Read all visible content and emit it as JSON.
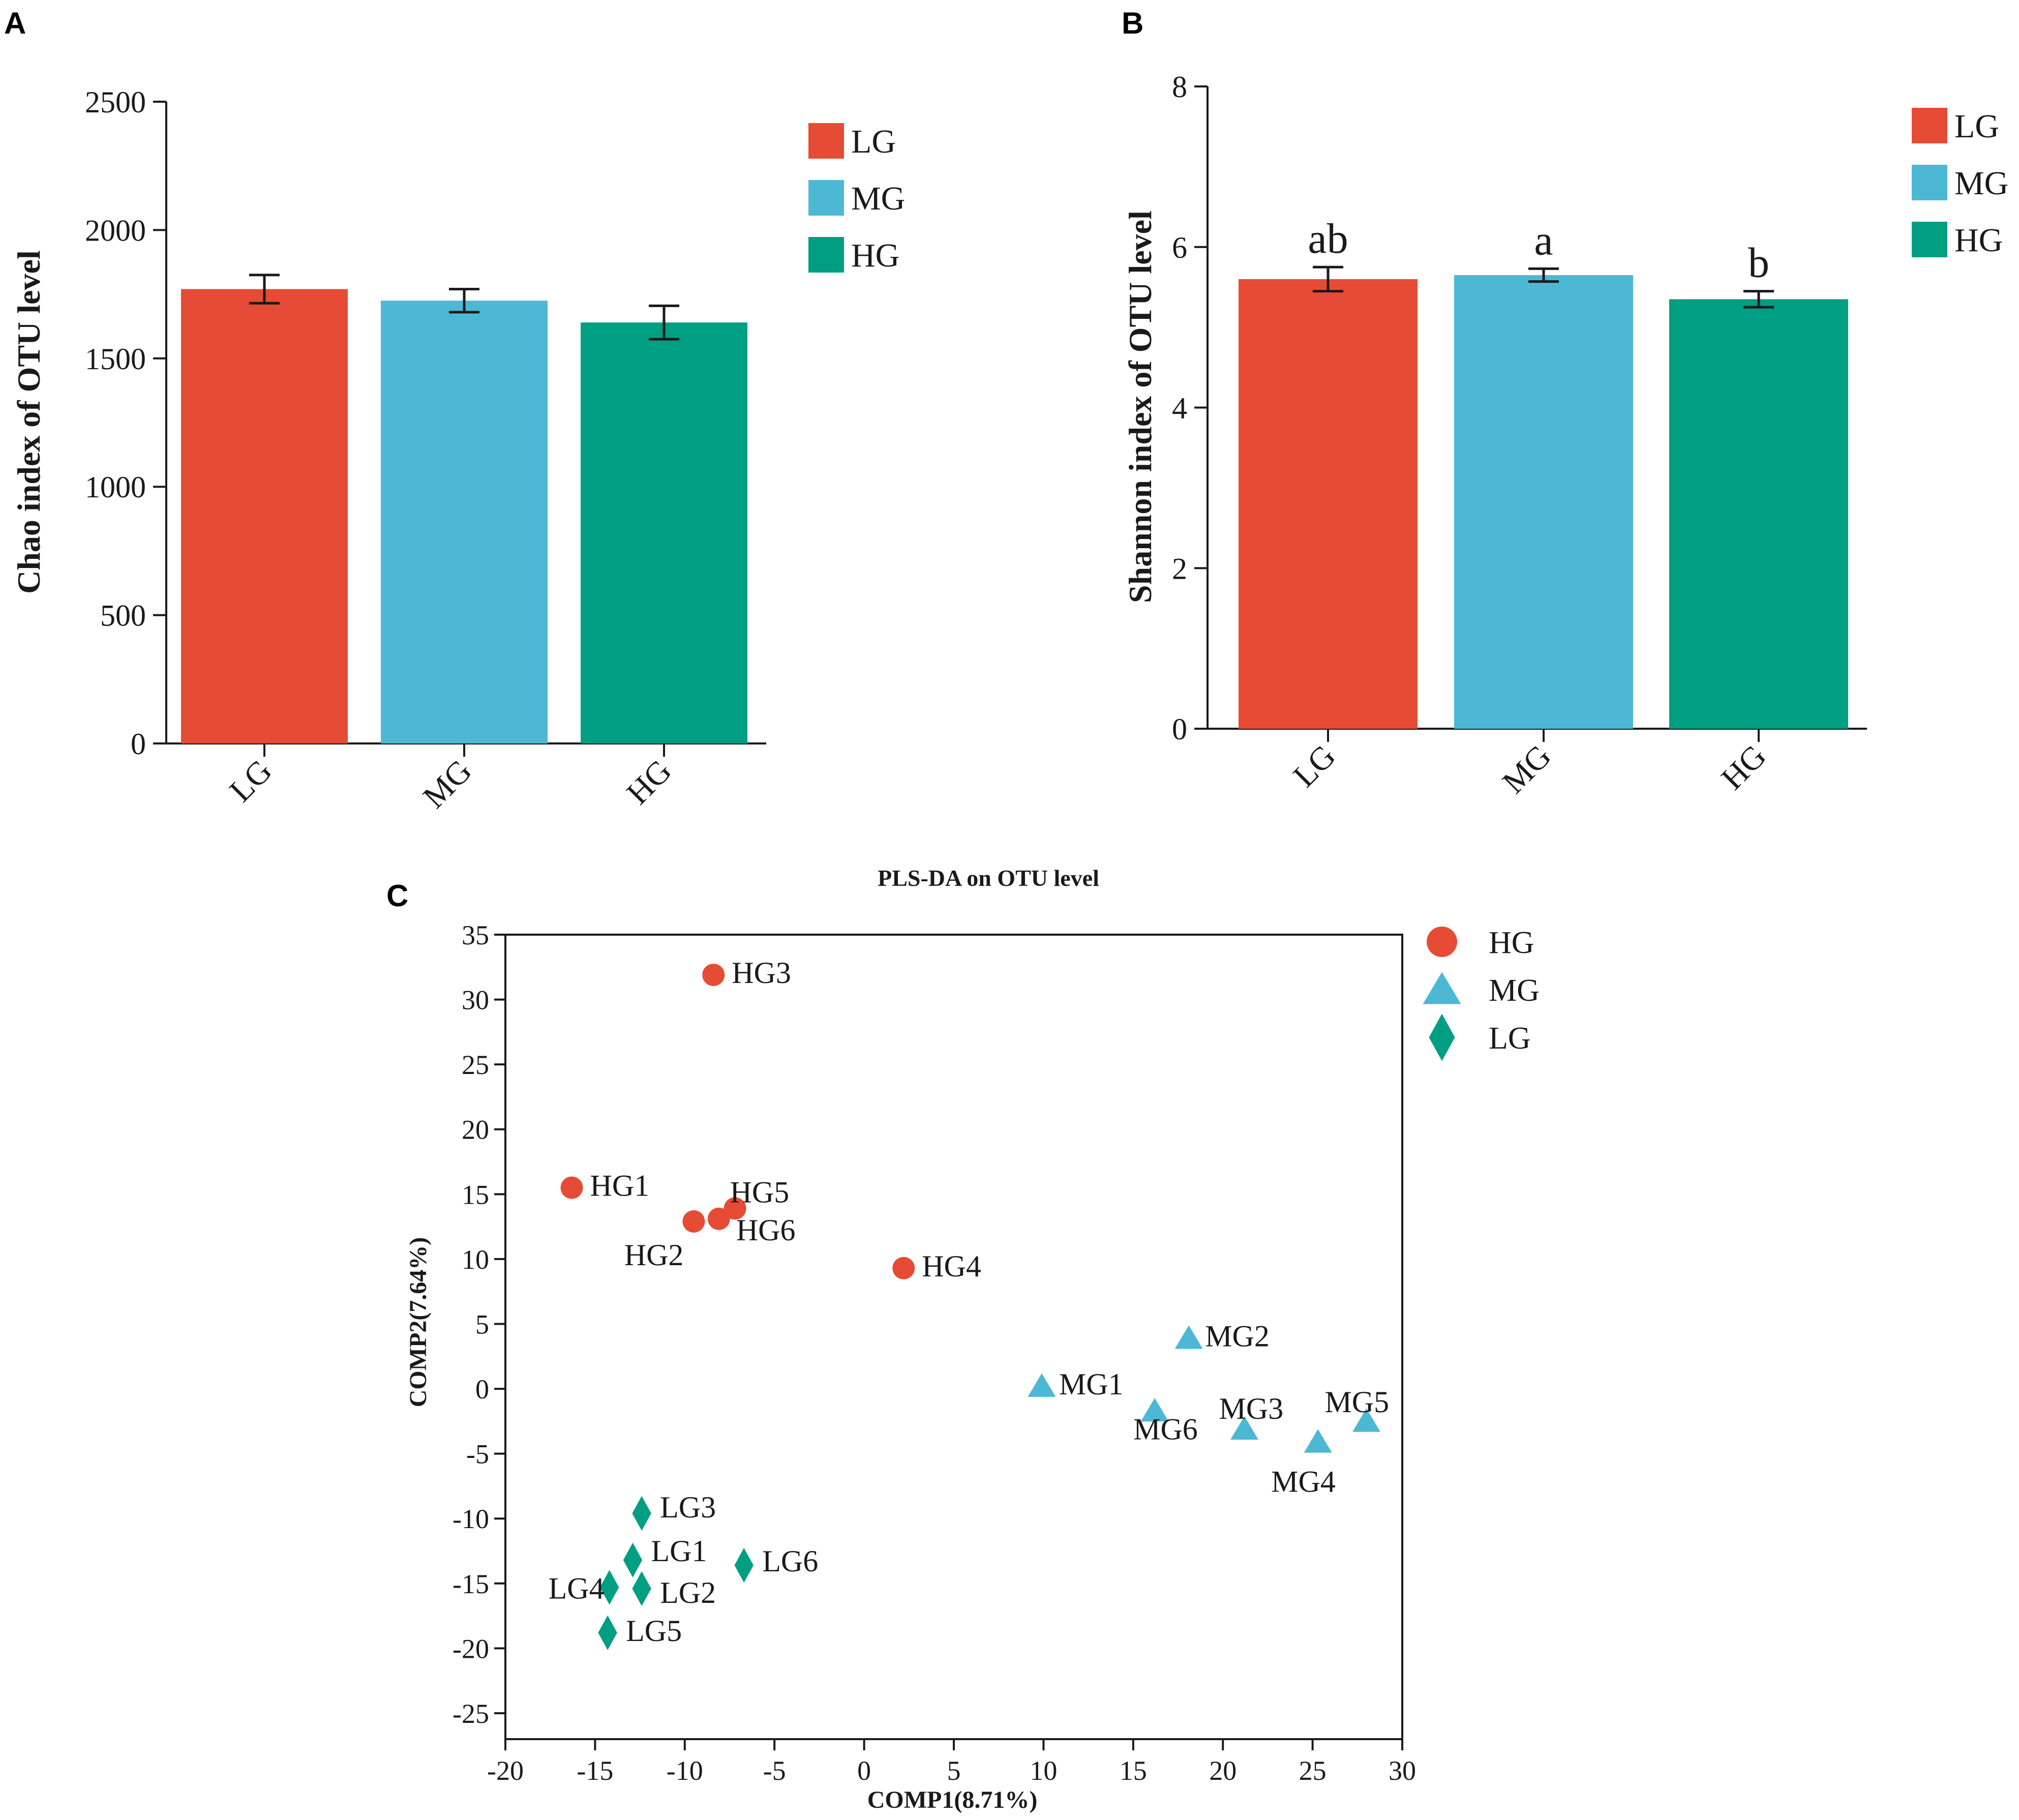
{
  "panels": {
    "a": {
      "label": "A"
    },
    "b": {
      "label": "B"
    },
    "c": {
      "label": "C"
    }
  },
  "chart_data": [
    {
      "id": "A",
      "type": "bar",
      "categories": [
        "LG",
        "MG",
        "HG"
      ],
      "values": [
        1770,
        1725,
        1640
      ],
      "errors": [
        55,
        45,
        65
      ],
      "colors": [
        "#e64b35",
        "#4db8d4",
        "#009e82"
      ],
      "ylabel": "Chao index of OTU level",
      "xlabel": "",
      "ylim": [
        0,
        2500
      ],
      "yticks": [
        0,
        500,
        1000,
        1500,
        2000,
        2500
      ],
      "legend": [
        "LG",
        "MG",
        "HG"
      ],
      "legend_position": "top-right"
    },
    {
      "id": "B",
      "type": "bar",
      "categories": [
        "LG",
        "MG",
        "HG"
      ],
      "values": [
        5.6,
        5.65,
        5.35
      ],
      "errors": [
        0.15,
        0.08,
        0.1
      ],
      "annotations": [
        "ab",
        "a",
        "b"
      ],
      "colors": [
        "#e64b35",
        "#4db8d4",
        "#009e82"
      ],
      "ylabel": "Shannon index of OTU level",
      "xlabel": "",
      "ylim": [
        0,
        8
      ],
      "yticks": [
        0,
        2,
        4,
        6,
        8
      ],
      "legend": [
        "LG",
        "MG",
        "HG"
      ],
      "legend_position": "top-right"
    },
    {
      "id": "C",
      "type": "scatter",
      "title": "PLS-DA on OTU level",
      "xlabel": "COMP1(8.71%)",
      "ylabel": "COMP2(7.64%)",
      "xlim": [
        -20,
        30
      ],
      "ylim": [
        -27,
        35
      ],
      "xticks": [
        -20,
        -15,
        -10,
        -5,
        0,
        5,
        10,
        15,
        20,
        25,
        30
      ],
      "yticks": [
        -25,
        -20,
        -15,
        -10,
        -5,
        0,
        5,
        10,
        15,
        20,
        25,
        30,
        35
      ],
      "legend_position": "top-right",
      "series": [
        {
          "name": "HG",
          "marker": "circle",
          "color": "#e64b35",
          "points": [
            {
              "label": "HG1",
              "x": -16.3,
              "y": 15.5
            },
            {
              "label": "HG2",
              "x": -9.5,
              "y": 12.9
            },
            {
              "label": "HG3",
              "x": -8.4,
              "y": 31.9
            },
            {
              "label": "HG4",
              "x": 2.2,
              "y": 9.3
            },
            {
              "label": "HG5",
              "x": -7.2,
              "y": 13.9
            },
            {
              "label": "HG6",
              "x": -8.1,
              "y": 13.1
            }
          ]
        },
        {
          "name": "MG",
          "marker": "triangle",
          "color": "#4db8d4",
          "points": [
            {
              "label": "MG1",
              "x": 9.9,
              "y": 0.2
            },
            {
              "label": "MG2",
              "x": 18.1,
              "y": 3.9
            },
            {
              "label": "MG3",
              "x": 21.2,
              "y": -3.1
            },
            {
              "label": "MG4",
              "x": 25.3,
              "y": -4.1
            },
            {
              "label": "MG5",
              "x": 28.0,
              "y": -2.5
            },
            {
              "label": "MG6",
              "x": 16.2,
              "y": -1.7
            }
          ]
        },
        {
          "name": "LG",
          "marker": "diamond",
          "color": "#009e82",
          "points": [
            {
              "label": "LG1",
              "x": -12.9,
              "y": -13.2
            },
            {
              "label": "LG2",
              "x": -12.4,
              "y": -15.4
            },
            {
              "label": "LG3",
              "x": -12.4,
              "y": -9.6
            },
            {
              "label": "LG4",
              "x": -14.2,
              "y": -15.3
            },
            {
              "label": "LG5",
              "x": -14.3,
              "y": -18.8
            },
            {
              "label": "LG6",
              "x": -6.7,
              "y": -13.6
            }
          ]
        }
      ]
    }
  ]
}
